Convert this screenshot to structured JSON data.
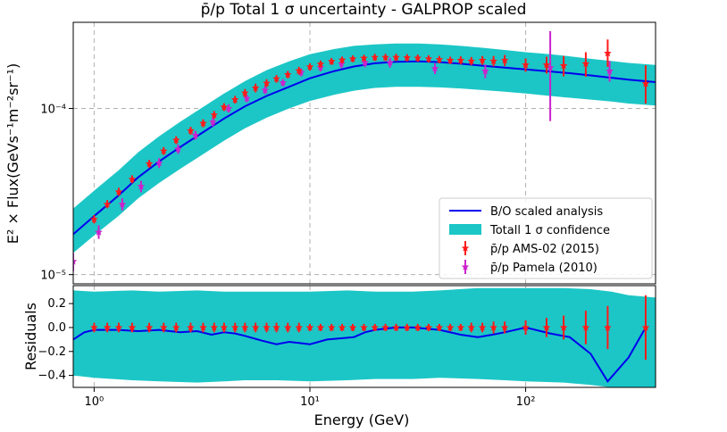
{
  "chart_data": {
    "type": "line",
    "title": "p̄/p Total 1 σ uncertainty - GALPROP scaled",
    "xlabel": "Energy (GeV)",
    "x_scale": "log",
    "xlim": [
      0.8,
      400
    ],
    "x_ticks": [
      {
        "value": 1,
        "label": "10⁰"
      },
      {
        "value": 10,
        "label": "10¹"
      },
      {
        "value": 100,
        "label": "10²"
      }
    ],
    "top_panel": {
      "ylabel": "E² × Flux(GeVs⁻¹m⁻²sr⁻¹)",
      "y_scale": "log",
      "ylim": [
        8.8e-06,
        0.00033
      ],
      "y_ticks": [
        {
          "value": 1e-05,
          "label": "10⁻⁵"
        },
        {
          "value": 0.0001,
          "label": "10⁻⁴"
        }
      ],
      "grid": true,
      "legend_position": "lower-right",
      "legend": [
        {
          "label": "B/O scaled analysis",
          "kind": "line",
          "color": "#0000ee"
        },
        {
          "label": "Totall 1 σ confidence",
          "kind": "band",
          "color": "#1cc6c6"
        },
        {
          "label": "p̄/p AMS-02 (2015)",
          "kind": "errorbar",
          "color": "#ff1a1a"
        },
        {
          "label": "p̄/p Pamela (2010)",
          "kind": "errorbar",
          "color": "#cc22cc"
        }
      ],
      "model": {
        "name": "B/O scaled analysis",
        "x": [
          0.8,
          1.0,
          1.3,
          1.6,
          2.0,
          2.5,
          3.2,
          4.0,
          5.0,
          6.3,
          8.0,
          10,
          13,
          16,
          20,
          25,
          32,
          40,
          50,
          63,
          80,
          100,
          130,
          160,
          200,
          250,
          300,
          400
        ],
        "y": [
          1.75e-05,
          2.25e-05,
          3e-05,
          3.85e-05,
          4.8e-05,
          5.85e-05,
          7.2e-05,
          8.7e-05,
          0.000103,
          0.000119,
          0.000135,
          0.000152,
          0.000168,
          0.000179,
          0.000187,
          0.000191,
          0.000192,
          0.00019,
          0.000186,
          0.000181,
          0.000176,
          0.000172,
          0.000167,
          0.000163,
          0.000158,
          0.000153,
          0.000149,
          0.000144
        ]
      },
      "band": {
        "name": "Totall 1 σ confidence",
        "x": [
          0.8,
          1.0,
          1.3,
          1.6,
          2.0,
          2.5,
          3.2,
          4.0,
          5.0,
          6.3,
          8.0,
          10,
          13,
          16,
          20,
          25,
          32,
          40,
          50,
          63,
          80,
          100,
          130,
          160,
          200,
          250,
          300,
          400
        ],
        "lower": [
          1.35e-05,
          1.72e-05,
          2.26e-05,
          2.88e-05,
          3.56e-05,
          4.32e-05,
          5.3e-05,
          6.4e-05,
          7.6e-05,
          8.8e-05,
          0.0001,
          0.000111,
          0.000121,
          0.000128,
          0.000133,
          0.000135,
          0.000135,
          0.000134,
          0.000132,
          0.000129,
          0.000126,
          0.000123,
          0.000119,
          0.000116,
          0.000113,
          0.00011,
          0.000107,
          0.000104
        ],
        "upper": [
          2.5e-05,
          3.2e-05,
          4.25e-05,
          5.45e-05,
          6.8e-05,
          8.3e-05,
          0.000102,
          0.000123,
          0.000146,
          0.00017,
          0.000192,
          0.000212,
          0.000228,
          0.000238,
          0.000243,
          0.000246,
          0.000246,
          0.000243,
          0.000238,
          0.000232,
          0.000225,
          0.000218,
          0.000212,
          0.000206,
          0.000199,
          0.000193,
          0.000188,
          0.000183
        ]
      },
      "ams02": {
        "name": "p̄/p AMS-02 (2015)",
        "x": [
          1.0,
          1.15,
          1.3,
          1.5,
          1.8,
          2.1,
          2.4,
          2.8,
          3.2,
          3.6,
          4.0,
          4.5,
          5.0,
          5.6,
          6.3,
          7.0,
          7.9,
          8.9,
          10,
          11.2,
          12.6,
          14.1,
          15.8,
          17.8,
          20,
          22.4,
          25.1,
          28.2,
          31.6,
          35.5,
          39.8,
          44.7,
          50,
          56,
          63,
          71,
          80,
          100,
          125,
          150,
          190,
          240,
          360
        ],
        "y": [
          2.15e-05,
          2.65e-05,
          3.15e-05,
          3.75e-05,
          4.65e-05,
          5.55e-05,
          6.45e-05,
          7.35e-05,
          8.15e-05,
          9.15e-05,
          0.000102,
          0.000113,
          0.000124,
          0.000133,
          0.000142,
          0.000151,
          0.00016,
          0.000169,
          0.000178,
          0.000185,
          0.000192,
          0.000196,
          0.000199,
          0.000201,
          0.000203,
          0.000203,
          0.000203,
          0.000202,
          0.000201,
          0.000199,
          0.000197,
          0.000195,
          0.000195,
          0.000193,
          0.000195,
          0.000193,
          0.000195,
          0.000183,
          0.000183,
          0.000181,
          0.000186,
          0.000215,
          0.000141
        ],
        "err_low": [
          2.03e-05,
          2.51e-05,
          2.98e-05,
          3.55e-05,
          4.4e-05,
          5.25e-05,
          6.1e-05,
          6.95e-05,
          7.7e-05,
          8.65e-05,
          9.65e-05,
          0.000107,
          0.000117,
          0.000125,
          0.000134,
          0.000143,
          0.000152,
          0.00016,
          0.000169,
          0.000176,
          0.000183,
          0.000187,
          0.00019,
          0.000192,
          0.000193,
          0.000193,
          0.000193,
          0.000192,
          0.000191,
          0.000189,
          0.000187,
          0.000185,
          0.000184,
          0.000182,
          0.000183,
          0.000179,
          0.00018,
          0.000166,
          0.000162,
          0.000156,
          0.000155,
          0.000178,
          0.000107
        ],
        "err_high": [
          2.28e-05,
          2.81e-05,
          3.33e-05,
          3.96e-05,
          4.9e-05,
          5.85e-05,
          6.8e-05,
          7.75e-05,
          8.6e-05,
          9.65e-05,
          0.0001075,
          0.000119,
          0.000131,
          0.000141,
          0.00015,
          0.000159,
          0.000168,
          0.000178,
          0.000187,
          0.000194,
          0.000201,
          0.000205,
          0.000208,
          0.00021,
          0.000213,
          0.000213,
          0.000213,
          0.000212,
          0.000211,
          0.000209,
          0.000207,
          0.000205,
          0.000206,
          0.000204,
          0.000207,
          0.000207,
          0.00021,
          0.0002,
          0.000205,
          0.000207,
          0.000218,
          0.00026,
          0.000182
        ]
      },
      "pamela": {
        "name": "p̄/p Pamela (2010)",
        "x": [
          0.8,
          1.05,
          1.35,
          1.65,
          2.0,
          2.45,
          2.95,
          3.55,
          4.2,
          5.1,
          6.2,
          7.5,
          9.1,
          11.2,
          14.0,
          18.0,
          23.5,
          38,
          65,
          130,
          245
        ],
        "y": [
          1.2e-05,
          1.8e-05,
          2.65e-05,
          3.4e-05,
          4.7e-05,
          5.7e-05,
          6.9e-05,
          8.3e-05,
          0.0001,
          0.000115,
          0.000129,
          0.000143,
          0.000165,
          0.000177,
          0.000186,
          0.000189,
          0.000189,
          0.000174,
          0.000168,
          0.000176,
          0.000168
        ],
        "err_low": [
          1.05e-05,
          1.64e-05,
          2.43e-05,
          3.13e-05,
          4.38e-05,
          5.33e-05,
          6.48e-05,
          7.8e-05,
          9.45e-05,
          0.000109,
          0.000122,
          0.000136,
          0.000156,
          0.000167,
          0.000175,
          0.000177,
          0.000176,
          0.000161,
          0.000152,
          8.4e-05,
          0.000145
        ],
        "err_high": [
          1.35e-05,
          1.98e-05,
          2.88e-05,
          3.67e-05,
          5.02e-05,
          6.07e-05,
          7.32e-05,
          8.8e-05,
          0.000106,
          0.000121,
          0.000136,
          0.00015,
          0.000174,
          0.000187,
          0.000197,
          0.000201,
          0.000202,
          0.000187,
          0.000184,
          0.000292,
          0.000193
        ]
      }
    },
    "bottom_panel": {
      "ylabel": "Residuals",
      "y_scale": "linear",
      "ylim": [
        -0.5,
        0.35
      ],
      "y_ticks": [
        {
          "value": 0.2,
          "label": "0.2"
        },
        {
          "value": 0.0,
          "label": "0.0"
        },
        {
          "value": -0.2,
          "label": "−0.2"
        },
        {
          "value": -0.4,
          "label": "−0.4"
        }
      ],
      "grid": true,
      "band": {
        "x": [
          0.8,
          1.0,
          1.5,
          2.0,
          3.0,
          4.0,
          5.0,
          7.0,
          10,
          15,
          20,
          30,
          40,
          60,
          80,
          100,
          150,
          200,
          250,
          300,
          400
        ],
        "lower": [
          -0.4,
          -0.42,
          -0.44,
          -0.45,
          -0.46,
          -0.45,
          -0.44,
          -0.44,
          -0.45,
          -0.44,
          -0.43,
          -0.43,
          -0.42,
          -0.43,
          -0.44,
          -0.45,
          -0.46,
          -0.48,
          -0.5,
          -0.5,
          -0.5
        ],
        "upper": [
          0.31,
          0.3,
          0.31,
          0.3,
          0.31,
          0.3,
          0.3,
          0.3,
          0.3,
          0.31,
          0.3,
          0.3,
          0.31,
          0.33,
          0.33,
          0.33,
          0.33,
          0.32,
          0.3,
          0.27,
          0.25
        ]
      },
      "residual_curve": {
        "x": [
          0.8,
          0.9,
          1.0,
          1.3,
          1.6,
          2.0,
          2.5,
          3.0,
          3.5,
          4.0,
          4.5,
          5.0,
          6.0,
          7.0,
          8.0,
          9.0,
          10,
          12,
          14,
          16,
          18,
          20,
          25,
          30,
          40,
          50,
          60,
          70,
          80,
          100,
          130,
          160,
          200,
          240,
          300,
          360
        ],
        "y": [
          -0.1,
          -0.04,
          -0.02,
          -0.02,
          -0.03,
          -0.02,
          -0.04,
          -0.03,
          -0.06,
          -0.04,
          -0.05,
          -0.07,
          -0.11,
          -0.14,
          -0.12,
          -0.13,
          -0.14,
          -0.1,
          -0.09,
          -0.08,
          -0.04,
          -0.02,
          0.0,
          0.0,
          -0.02,
          -0.06,
          -0.08,
          -0.06,
          -0.04,
          0.0,
          -0.05,
          -0.08,
          -0.22,
          -0.45,
          -0.25,
          0.0
        ]
      },
      "residual_points": {
        "x": [
          1.0,
          1.15,
          1.3,
          1.5,
          1.8,
          2.1,
          2.4,
          2.8,
          3.2,
          3.6,
          4.0,
          4.5,
          5.0,
          5.6,
          6.3,
          7.0,
          7.9,
          8.9,
          10,
          11.2,
          12.6,
          14.1,
          15.8,
          17.8,
          20,
          22.4,
          25.1,
          28.2,
          31.6,
          35.5,
          39.8,
          44.7,
          50,
          56,
          63,
          71,
          80,
          100,
          125,
          150,
          190,
          240,
          360
        ],
        "y": [
          0,
          0,
          0,
          0,
          0,
          0,
          0,
          0,
          0,
          0,
          0,
          0,
          0,
          0,
          0,
          0,
          0,
          0,
          0,
          0,
          0,
          0,
          0,
          0,
          0,
          0,
          0,
          0,
          0,
          0,
          0,
          0,
          0,
          0,
          0,
          0,
          0,
          0,
          0,
          0,
          0,
          0,
          0
        ],
        "err": [
          0.04,
          0.04,
          0.04,
          0.04,
          0.04,
          0.04,
          0.04,
          0.04,
          0.04,
          0.04,
          0.04,
          0.04,
          0.04,
          0.04,
          0.04,
          0.04,
          0.04,
          0.04,
          0.03,
          0.03,
          0.03,
          0.03,
          0.03,
          0.03,
          0.03,
          0.03,
          0.03,
          0.03,
          0.03,
          0.03,
          0.03,
          0.03,
          0.03,
          0.04,
          0.04,
          0.05,
          0.05,
          0.06,
          0.08,
          0.1,
          0.14,
          0.18,
          0.27
        ]
      }
    }
  }
}
